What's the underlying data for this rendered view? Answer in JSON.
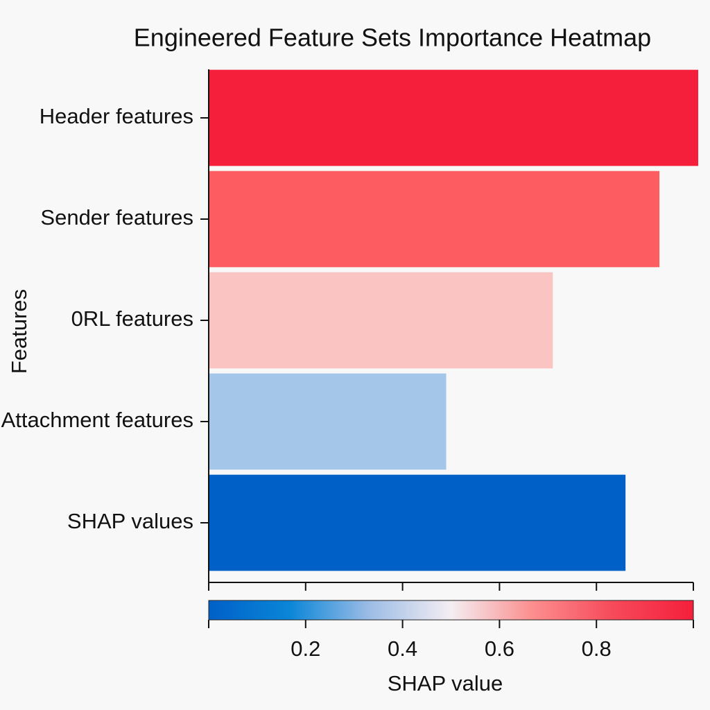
{
  "chart_data": {
    "type": "barh",
    "title": "Engineered Feature Sets Importance Heatmap",
    "ylabel": "Features",
    "xlabel": "SHAP value",
    "categories": [
      "Header features",
      "Sender features",
      "0RL features",
      "Attachment features",
      "SHAP values"
    ],
    "values": [
      1.01,
      0.93,
      0.71,
      0.49,
      0.86
    ],
    "colors": [
      "#f51f3c",
      "#fd5c60",
      "#fac4c3",
      "#a3c6e9",
      "#0060c8"
    ],
    "colormap": [
      "#0060c8",
      "#0a86d8",
      "#9ebde6",
      "#f4eef2",
      "#fc8f8f",
      "#f64a5a",
      "#f51f3c"
    ],
    "xlim": [
      0,
      1
    ],
    "xticks": [
      0.2,
      0.4,
      0.6,
      0.8
    ]
  }
}
